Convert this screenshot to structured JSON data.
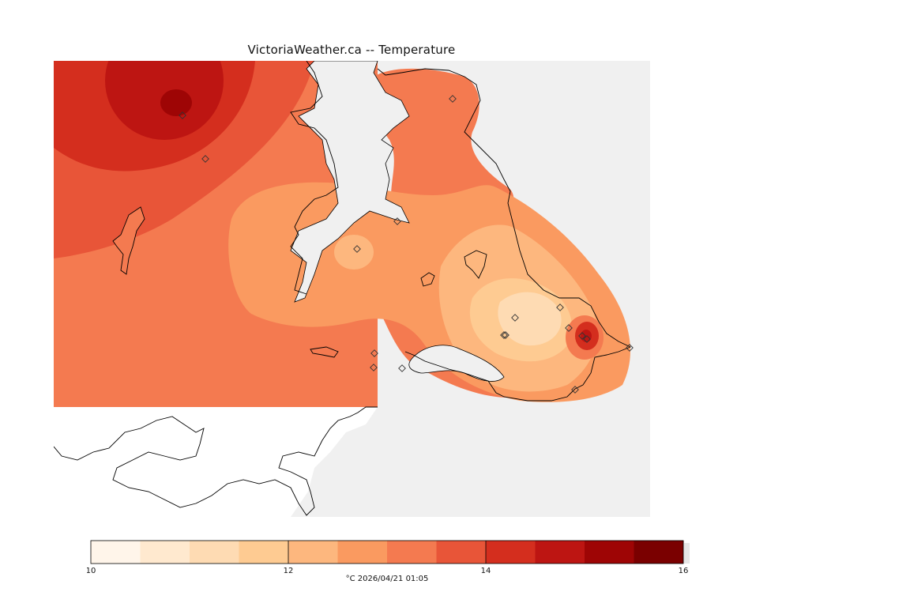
{
  "title": "VictoriaWeather.ca -- Temperature",
  "footer": "°C  2026/04/21 01:05",
  "colorbar": {
    "min": 10,
    "max": 16,
    "tick_labels": [
      "10",
      "12",
      "14",
      "16"
    ],
    "bins": [
      "#fff5ea",
      "#ffe9cf",
      "#fedbb3",
      "#fecb92",
      "#fdb77e",
      "#fa9a60",
      "#f47a50",
      "#e85538",
      "#d42e1e",
      "#bd1512",
      "#9e0505",
      "#7a0000"
    ]
  },
  "colors": {
    "ocean": "#f0f0f0",
    "land_unshaded": "#ffffff",
    "coastline": "#000000",
    "station_marker": "#333333"
  },
  "station_count": 17
}
